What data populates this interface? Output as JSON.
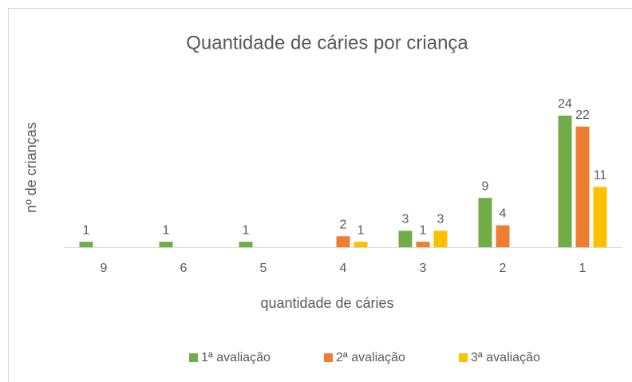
{
  "chart_data": {
    "type": "bar",
    "title": "Quantidade de cáries por criança",
    "x_label": "quantidade de cáries",
    "y_label": "nº de crianças",
    "categories": [
      "9",
      "6",
      "5",
      "4",
      "3",
      "2",
      "1"
    ],
    "series": [
      {
        "name": "1ª avaliação",
        "color": "#70ad47",
        "values": [
          1,
          1,
          1,
          null,
          3,
          9,
          24
        ]
      },
      {
        "name": "2ª avaliação",
        "color": "#ed7d31",
        "values": [
          null,
          null,
          null,
          2,
          1,
          4,
          22
        ]
      },
      {
        "name": "3ª avaliação",
        "color": "#ffc000",
        "values": [
          null,
          null,
          null,
          1,
          3,
          null,
          11
        ]
      }
    ],
    "legend": "bottom"
  }
}
